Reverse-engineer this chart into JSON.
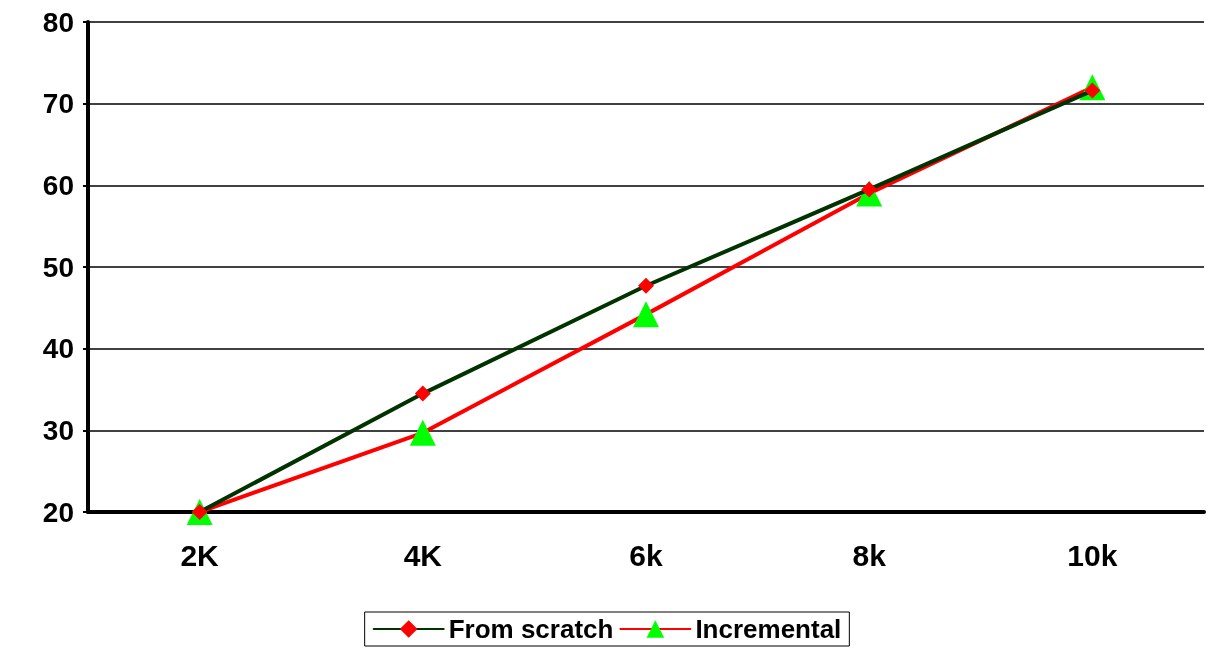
{
  "chart_data": {
    "type": "line",
    "categories": [
      "2K",
      "4K",
      "6k",
      "8k",
      "10k"
    ],
    "series": [
      {
        "name": "From scratch",
        "color": "#003300",
        "colors": [
          "#ff0000",
          "#ff0000",
          "#ff0000",
          "#ff0000",
          "#ff0000"
        ],
        "marker": "diamond",
        "values": [
          20,
          34.5,
          47.7,
          59.5,
          71.6
        ]
      },
      {
        "name": "Incremental",
        "color": "#ff0000",
        "colors": [
          "#00ff00",
          "#00ff00",
          "#00ff00",
          "#00ff00",
          "#00ff00"
        ],
        "marker": "triangle",
        "values": [
          20,
          29.7,
          44.2,
          59,
          72
        ]
      }
    ],
    "ylim": [
      20,
      80
    ],
    "yticks": [
      20,
      30,
      40,
      50,
      60,
      70,
      80
    ],
    "grid": "y",
    "legend": "bottom",
    "line_style": "solid"
  }
}
